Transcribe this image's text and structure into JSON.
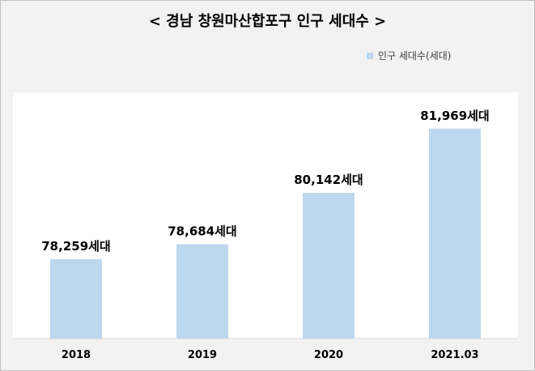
{
  "chart_data": {
    "type": "bar",
    "title": "< 경남 창원마산합포구 인구 세대수 >",
    "categories": [
      "2018",
      "2019",
      "2020",
      "2021.03"
    ],
    "series": [
      {
        "name": "인구 세대수(세대)",
        "values": [
          78259,
          78684,
          80142,
          81969
        ],
        "labels": [
          "78,259세대",
          "78,684세대",
          "80,142세대",
          "81,969세대"
        ],
        "color": "#bdd7ee"
      }
    ],
    "xlabel": "",
    "ylabel": "",
    "ylim": [
      76000,
      83000
    ],
    "grid": false,
    "legend": "top-right"
  }
}
